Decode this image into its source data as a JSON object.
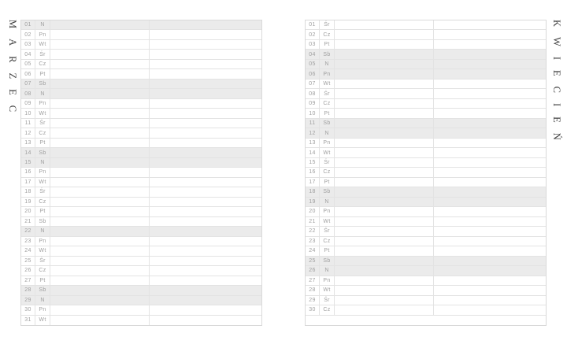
{
  "colors": {
    "shaded_row": "#ebebeb",
    "grid_line": "#e3e3e3",
    "outer_border": "#d9d9d9",
    "cell_text": "#a0a0a0",
    "title_text": "#3c3c3c",
    "page_background": "#ffffff"
  },
  "pages": [
    {
      "month_title": "MARZEC",
      "title_side": "left",
      "trailing_empty_row": false,
      "rows": [
        {
          "num": "01",
          "day": "N",
          "shaded": true
        },
        {
          "num": "02",
          "day": "Pn",
          "shaded": false
        },
        {
          "num": "03",
          "day": "Wt",
          "shaded": false
        },
        {
          "num": "04",
          "day": "Śr",
          "shaded": false
        },
        {
          "num": "05",
          "day": "Cz",
          "shaded": false
        },
        {
          "num": "06",
          "day": "Pt",
          "shaded": false
        },
        {
          "num": "07",
          "day": "Sb",
          "shaded": true
        },
        {
          "num": "08",
          "day": "N",
          "shaded": true
        },
        {
          "num": "09",
          "day": "Pn",
          "shaded": false
        },
        {
          "num": "10",
          "day": "Wt",
          "shaded": false
        },
        {
          "num": "11",
          "day": "Śr",
          "shaded": false
        },
        {
          "num": "12",
          "day": "Cz",
          "shaded": false
        },
        {
          "num": "13",
          "day": "Pt",
          "shaded": false
        },
        {
          "num": "14",
          "day": "Sb",
          "shaded": true
        },
        {
          "num": "15",
          "day": "N",
          "shaded": true
        },
        {
          "num": "16",
          "day": "Pn",
          "shaded": false
        },
        {
          "num": "17",
          "day": "Wt",
          "shaded": false
        },
        {
          "num": "18",
          "day": "Śr",
          "shaded": false
        },
        {
          "num": "19",
          "day": "Cz",
          "shaded": false
        },
        {
          "num": "20",
          "day": "Pt",
          "shaded": false
        },
        {
          "num": "21",
          "day": "Sb",
          "shaded": false
        },
        {
          "num": "22",
          "day": "N",
          "shaded": true
        },
        {
          "num": "23",
          "day": "Pn",
          "shaded": false
        },
        {
          "num": "24",
          "day": "Wt",
          "shaded": false
        },
        {
          "num": "25",
          "day": "Śr",
          "shaded": false
        },
        {
          "num": "26",
          "day": "Cz",
          "shaded": false
        },
        {
          "num": "27",
          "day": "Pt",
          "shaded": false
        },
        {
          "num": "28",
          "day": "Sb",
          "shaded": true
        },
        {
          "num": "29",
          "day": "N",
          "shaded": true
        },
        {
          "num": "30",
          "day": "Pn",
          "shaded": false
        },
        {
          "num": "31",
          "day": "Wt",
          "shaded": false
        }
      ]
    },
    {
      "month_title": "KWIECIEŃ",
      "title_side": "right",
      "trailing_empty_row": true,
      "rows": [
        {
          "num": "01",
          "day": "Śr",
          "shaded": false
        },
        {
          "num": "02",
          "day": "Cz",
          "shaded": false
        },
        {
          "num": "03",
          "day": "Pt",
          "shaded": false
        },
        {
          "num": "04",
          "day": "Sb",
          "shaded": true
        },
        {
          "num": "05",
          "day": "N",
          "shaded": true
        },
        {
          "num": "06",
          "day": "Pn",
          "shaded": true
        },
        {
          "num": "07",
          "day": "Wt",
          "shaded": false
        },
        {
          "num": "08",
          "day": "Śr",
          "shaded": false
        },
        {
          "num": "09",
          "day": "Cz",
          "shaded": false
        },
        {
          "num": "10",
          "day": "Pt",
          "shaded": false
        },
        {
          "num": "11",
          "day": "Sb",
          "shaded": true
        },
        {
          "num": "12",
          "day": "N",
          "shaded": true
        },
        {
          "num": "13",
          "day": "Pn",
          "shaded": false
        },
        {
          "num": "14",
          "day": "Wt",
          "shaded": false
        },
        {
          "num": "15",
          "day": "Śr",
          "shaded": false
        },
        {
          "num": "16",
          "day": "Cz",
          "shaded": false
        },
        {
          "num": "17",
          "day": "Pt",
          "shaded": false
        },
        {
          "num": "18",
          "day": "Sb",
          "shaded": true
        },
        {
          "num": "19",
          "day": "N",
          "shaded": true
        },
        {
          "num": "20",
          "day": "Pn",
          "shaded": false
        },
        {
          "num": "21",
          "day": "Wt",
          "shaded": false
        },
        {
          "num": "22",
          "day": "Śr",
          "shaded": false
        },
        {
          "num": "23",
          "day": "Cz",
          "shaded": false
        },
        {
          "num": "24",
          "day": "Pt",
          "shaded": false
        },
        {
          "num": "25",
          "day": "Sb",
          "shaded": true
        },
        {
          "num": "26",
          "day": "N",
          "shaded": true
        },
        {
          "num": "27",
          "day": "Pn",
          "shaded": false
        },
        {
          "num": "28",
          "day": "Wt",
          "shaded": false
        },
        {
          "num": "29",
          "day": "Śr",
          "shaded": false
        },
        {
          "num": "30",
          "day": "Cz",
          "shaded": false
        }
      ]
    }
  ]
}
